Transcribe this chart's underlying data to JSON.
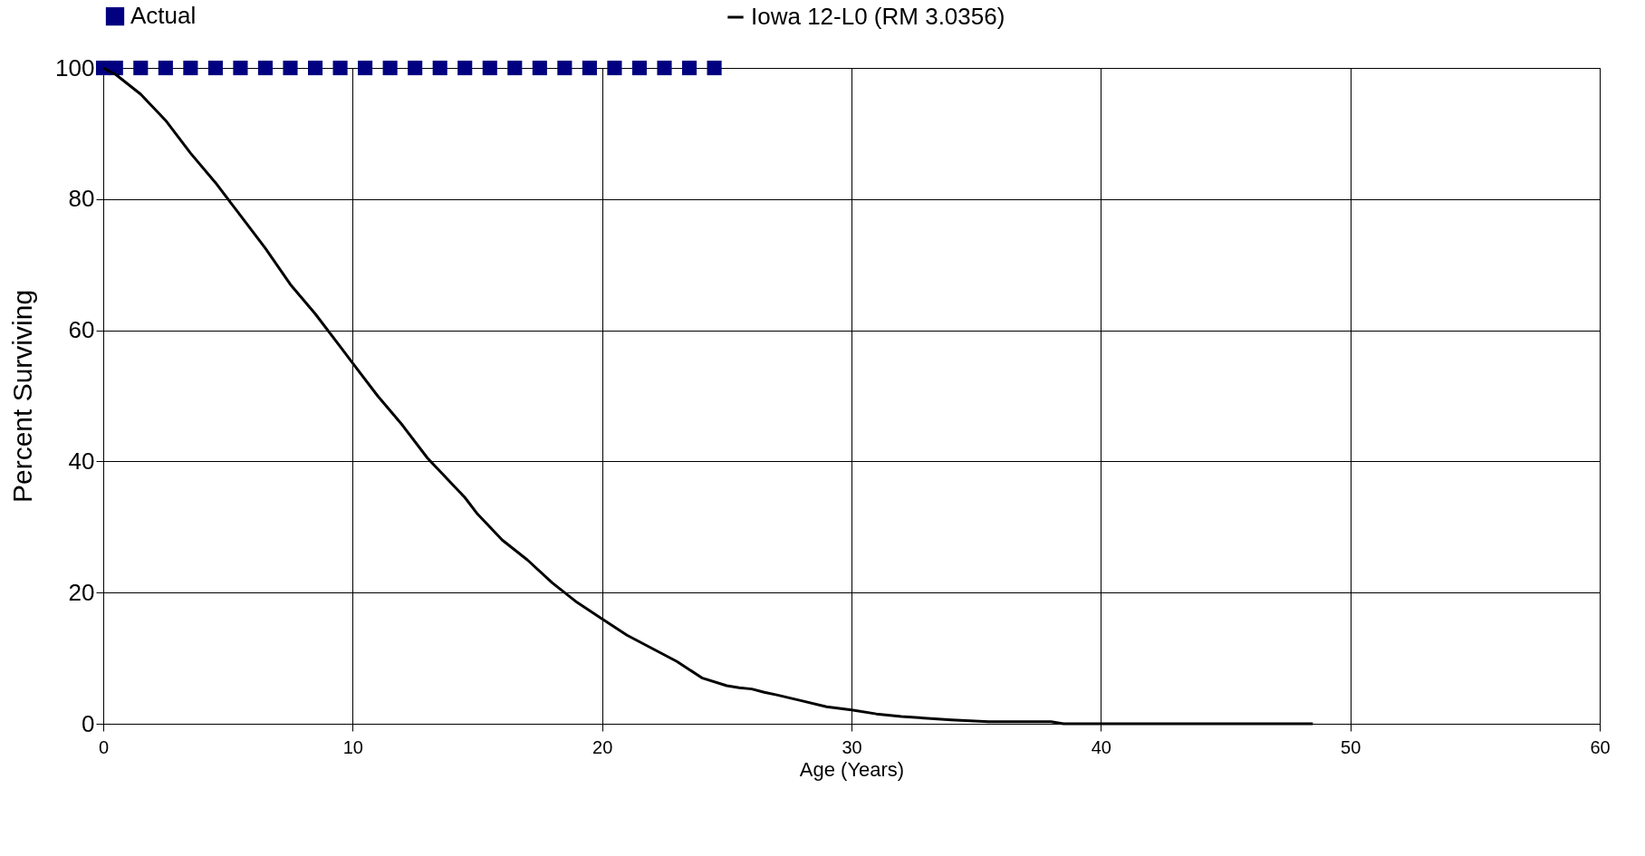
{
  "chart_data": {
    "type": "line",
    "xlabel": "Age (Years)",
    "ylabel": "Percent Surviving",
    "xlim": [
      0,
      60
    ],
    "xticks": [
      0,
      10,
      20,
      30,
      40,
      50,
      60
    ],
    "ylim": [
      0,
      100
    ],
    "yticks": [
      0,
      20,
      40,
      60,
      80,
      100
    ],
    "grid": true,
    "legend": "top",
    "series": [
      {
        "name": "Actual",
        "type": "scatter",
        "marker": "square",
        "color": "#000080",
        "x": [
          0,
          0.5,
          1.5,
          2.5,
          3.5,
          4.5,
          5.5,
          6.5,
          7.5,
          8.5,
          9.5,
          10.5,
          11.5,
          12.5,
          13.5,
          14.5,
          15.5,
          16.5,
          17.5,
          18.5,
          19.5,
          20.5,
          21.5,
          22.5,
          23.5,
          24.5
        ],
        "values": [
          100,
          100,
          100,
          100,
          100,
          100,
          100,
          100,
          100,
          100,
          100,
          100,
          100,
          100,
          100,
          100,
          100,
          100,
          100,
          100,
          100,
          100,
          100,
          100,
          100,
          100
        ]
      },
      {
        "name": "Iowa 12-L0 (RM 3.0356)",
        "marker": "none",
        "color": "#000000",
        "x": [
          0,
          0.5,
          1.5,
          2.5,
          3.5,
          4.5,
          5.5,
          6.5,
          7.5,
          8.5,
          9.5,
          10,
          11,
          12,
          13,
          13.5,
          14.5,
          15,
          16,
          17,
          18,
          19,
          20,
          21,
          22,
          23,
          24,
          25,
          25.5,
          26,
          26.5,
          27,
          28,
          29,
          30,
          31,
          32,
          34,
          35.5,
          38,
          38.5,
          40,
          48.5
        ],
        "values": [
          100,
          99,
          96,
          92,
          87,
          82.5,
          77.5,
          72.5,
          67,
          62.5,
          57.5,
          55,
          50,
          45.5,
          40.5,
          38.5,
          34.5,
          32,
          28,
          25,
          21.5,
          18.5,
          16,
          13.5,
          11.5,
          9.5,
          7,
          5.8,
          5.5,
          5.3,
          4.8,
          4.4,
          3.5,
          2.6,
          2.1,
          1.5,
          1.1,
          0.6,
          0.3,
          0.3,
          0,
          0,
          0
        ]
      }
    ]
  }
}
